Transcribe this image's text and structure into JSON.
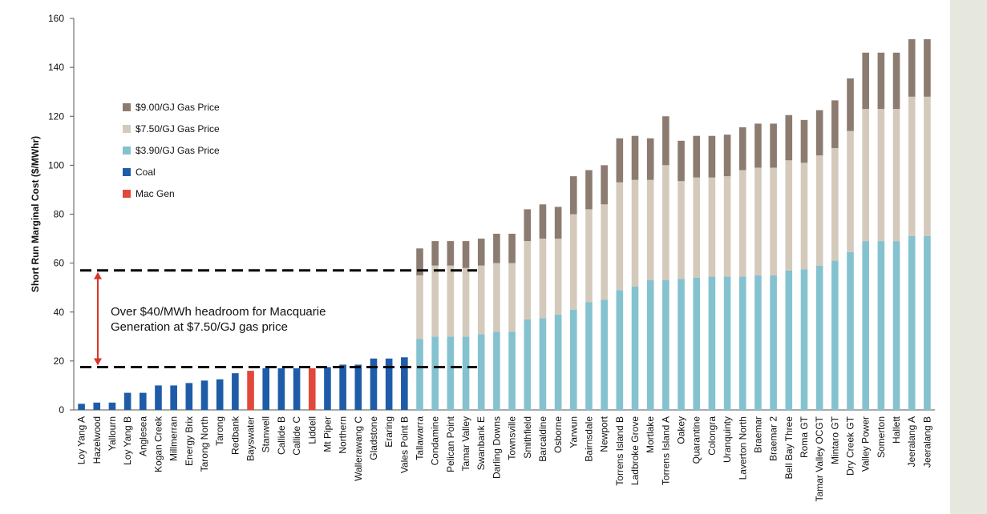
{
  "chart_data": {
    "type": "bar",
    "stacked": true,
    "ylabel": "Short Run Marginal Cost ($/MWhr)",
    "ylim": [
      0,
      160
    ],
    "yticks": [
      0,
      20,
      40,
      60,
      80,
      100,
      120,
      140,
      160
    ],
    "grid": false,
    "legend_position": "left",
    "legend": [
      {
        "name": "$9.00/GJ Gas Price",
        "color": "#8c7b70"
      },
      {
        "name": "$7.50/GJ Gas Price",
        "color": "#d4cabb"
      },
      {
        "name": "$3.90/GJ Gas Price",
        "color": "#85c2cf"
      },
      {
        "name": "Coal",
        "color": "#1f5ca8"
      },
      {
        "name": "Mac Gen",
        "color": "#e2483a"
      }
    ],
    "categories": [
      "Loy Yang A",
      "Hazelwood",
      "Yallourn",
      "Loy Yang B",
      "Anglesea",
      "Kogan Creek",
      "Millmerran",
      "Energy Brix",
      "Tarong North",
      "Tarong",
      "Redbank",
      "Bayswater",
      "Stanwell",
      "Callide B",
      "Callide C",
      "Liddell",
      "Mt Piper",
      "Northern",
      "Wallerawang C",
      "Gladstone",
      "Eraring",
      "Vales Point B",
      "Tallawarra",
      "Condamine",
      "Pelican Point",
      "Tamar Valley",
      "Swanbank E",
      "Darling Downs",
      "Townsville",
      "Smithfield",
      "Barcaldine",
      "Osborne",
      "Yarwun",
      "Bairnsdale",
      "Newport",
      "Torrens Island B",
      "Ladbroke Grove",
      "Mortlake",
      "Torrens Island A",
      "Oakey",
      "Quarantine",
      "Colongra",
      "Uranquinty",
      "Laverton North",
      "Braemar",
      "Braemar 2",
      "Bell Bay Three",
      "Roma GT",
      "Tamar Valley OCGT",
      "Mintaro GT",
      "Dry Creek GT",
      "Valley Power",
      "Somerton",
      "Hallett",
      "Jeeralang A",
      "Jeeralang B"
    ],
    "coal_values": [
      2.5,
      3,
      3,
      7,
      7,
      10,
      10,
      11,
      12,
      12.5,
      15,
      16,
      17,
      17,
      17,
      17,
      17.5,
      18.5,
      18.5,
      21,
      21,
      21.5
    ],
    "coal_types": [
      "Coal",
      "Coal",
      "Coal",
      "Coal",
      "Coal",
      "Coal",
      "Coal",
      "Coal",
      "Coal",
      "Coal",
      "Coal",
      "Mac Gen",
      "Coal",
      "Coal",
      "Coal",
      "Mac Gen",
      "Coal",
      "Coal",
      "Coal",
      "Coal",
      "Coal",
      "Coal"
    ],
    "gas_390": [
      29,
      30,
      30,
      30,
      31,
      32,
      32,
      37,
      37.5,
      39,
      41,
      44,
      45,
      49,
      50.5,
      53,
      53,
      53.5,
      54,
      54.5,
      54.5,
      54.5,
      55,
      55,
      57,
      57.5,
      59,
      61,
      64.5,
      69,
      69,
      69,
      71,
      71
    ],
    "gas_750": [
      55,
      59,
      59,
      58,
      59,
      60,
      60,
      69,
      70,
      70,
      80,
      82,
      84,
      93,
      94,
      94,
      100,
      93.5,
      95,
      95,
      95.5,
      98,
      99,
      99,
      102,
      101,
      104,
      107,
      114,
      123,
      123,
      123,
      128,
      128
    ],
    "gas_900": [
      66,
      69,
      69,
      69,
      70,
      72,
      72,
      82,
      84,
      83,
      95.5,
      98,
      100,
      111,
      112,
      111,
      120,
      110,
      112,
      112,
      112.5,
      115.5,
      117,
      117,
      120.5,
      118.5,
      122.5,
      126.5,
      135.5,
      146,
      146,
      146,
      151.5,
      151.5
    ],
    "reference_lines": [
      {
        "name": "$7.50/GJ gas price level",
        "value": 57
      },
      {
        "name": "Mac Gen cost level",
        "value": 17.5
      }
    ],
    "annotation": {
      "line1": "Over $40/MWh headroom for Macquarie",
      "line2": "Generation at $7.50/GJ gas price",
      "from": 17.5,
      "to": 57
    }
  }
}
